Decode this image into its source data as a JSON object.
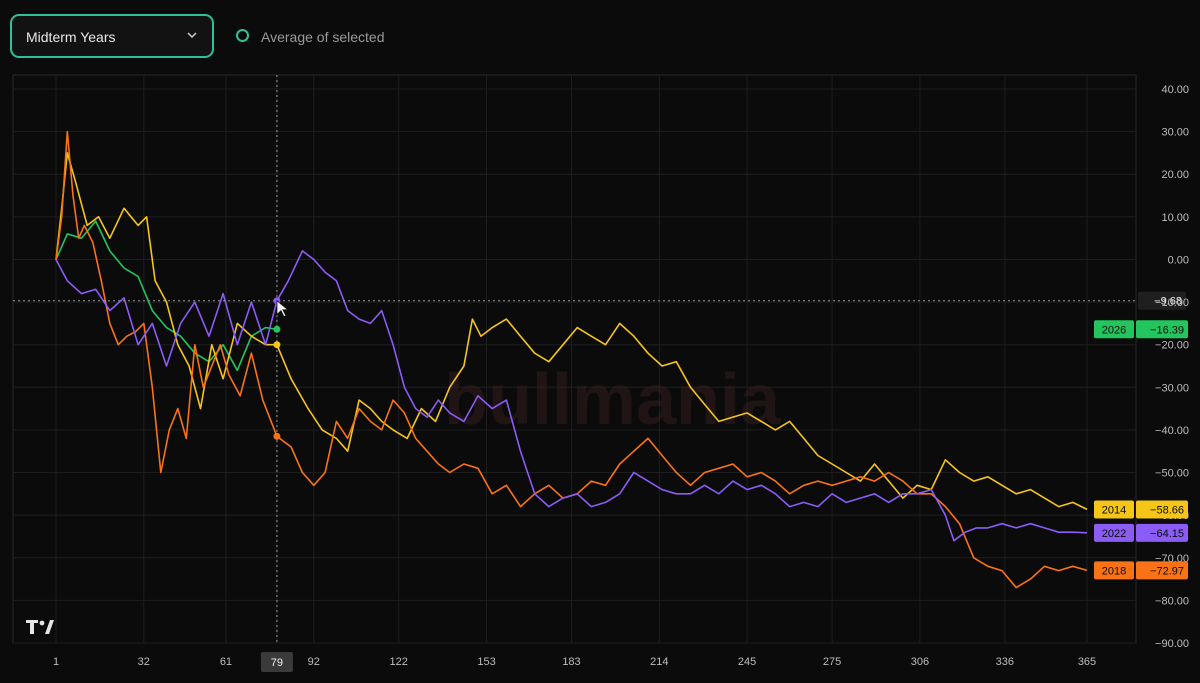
{
  "toolbar": {
    "dropdown_value": "Midterm Years",
    "average_label": "Average of selected"
  },
  "icons": {
    "dropdown": "chevron-down-icon",
    "logo": "tradingview-logo-icon",
    "cursor": "cursor-icon"
  },
  "watermark": "bullmania",
  "crosshair": {
    "x": 79,
    "y": -9.68,
    "x_label": "79",
    "y_label": "-9.68"
  },
  "chart_data": {
    "type": "line",
    "x_ticks": [
      1,
      32,
      61,
      79,
      92,
      122,
      153,
      183,
      214,
      245,
      275,
      306,
      336,
      365
    ],
    "y_ticks": [
      "40.00",
      "30.00",
      "20.00",
      "10.00",
      "0.00",
      "-10.00",
      "-20.00",
      "-30.00",
      "-40.00",
      "-50.00",
      "-60.00",
      "-70.00",
      "-80.00",
      "-90.00"
    ],
    "xlim": [
      1,
      365
    ],
    "ylim": [
      -90,
      40
    ],
    "grid": true,
    "series": [
      {
        "name": "2026",
        "color": "#22c55e",
        "last_label": "-16.39",
        "x": [
          1,
          5,
          10,
          15,
          20,
          25,
          30,
          35,
          40,
          45,
          50,
          55,
          60,
          65,
          70,
          75,
          79
        ],
        "y": [
          0,
          6,
          5,
          9,
          2,
          -2,
          -4,
          -12,
          -16,
          -18,
          -22,
          -24,
          -20,
          -26,
          -18,
          -16,
          -16.39
        ]
      },
      {
        "name": "2014",
        "color": "#f5c518",
        "last_label": "-58.66",
        "x": [
          1,
          3,
          5,
          8,
          12,
          16,
          20,
          25,
          30,
          33,
          36,
          40,
          44,
          48,
          52,
          56,
          60,
          65,
          70,
          75,
          79,
          84,
          90,
          95,
          100,
          104,
          108,
          112,
          116,
          120,
          125,
          130,
          135,
          140,
          145,
          148,
          151,
          155,
          160,
          165,
          170,
          175,
          180,
          185,
          190,
          195,
          200,
          205,
          210,
          215,
          220,
          225,
          230,
          235,
          240,
          245,
          250,
          255,
          260,
          265,
          270,
          275,
          280,
          285,
          290,
          295,
          300,
          305,
          310,
          315,
          320,
          325,
          330,
          335,
          340,
          345,
          350,
          355,
          360,
          365
        ],
        "y": [
          0,
          12,
          25,
          18,
          8,
          10,
          5,
          12,
          8,
          10,
          -5,
          -10,
          -20,
          -25,
          -35,
          -20,
          -28,
          -15,
          -18,
          -20,
          -20,
          -28,
          -35,
          -40,
          -42,
          -45,
          -33,
          -35,
          -38,
          -40,
          -42,
          -35,
          -38,
          -30,
          -25,
          -14,
          -18,
          -16,
          -14,
          -18,
          -22,
          -24,
          -20,
          -16,
          -18,
          -20,
          -15,
          -18,
          -22,
          -25,
          -24,
          -30,
          -34,
          -38,
          -37,
          -36,
          -38,
          -40,
          -38,
          -42,
          -46,
          -48,
          -50,
          -52,
          -48,
          -52,
          -56,
          -53,
          -54,
          -47,
          -50,
          -52,
          -51,
          -53,
          -55,
          -54,
          -56,
          -58,
          -57,
          -58.66
        ]
      },
      {
        "name": "2018",
        "color": "#f97316",
        "last_label": "-72.97",
        "x": [
          1,
          3,
          5,
          7,
          9,
          11,
          14,
          17,
          20,
          23,
          26,
          29,
          32,
          35,
          38,
          41,
          44,
          47,
          50,
          53,
          56,
          59,
          62,
          66,
          70,
          74,
          79,
          84,
          88,
          92,
          96,
          100,
          104,
          108,
          112,
          116,
          120,
          124,
          128,
          132,
          136,
          140,
          145,
          150,
          155,
          160,
          165,
          170,
          175,
          180,
          185,
          190,
          195,
          200,
          205,
          210,
          215,
          220,
          225,
          230,
          235,
          240,
          245,
          250,
          255,
          260,
          265,
          270,
          275,
          280,
          285,
          290,
          295,
          300,
          305,
          310,
          315,
          320,
          325,
          330,
          335,
          340,
          345,
          350,
          355,
          360,
          365
        ],
        "y": [
          0,
          10,
          30,
          15,
          5,
          8,
          4,
          -5,
          -15,
          -20,
          -18,
          -17,
          -15,
          -30,
          -50,
          -40,
          -35,
          -42,
          -20,
          -30,
          -25,
          -20,
          -27,
          -32,
          -22,
          -33,
          -41.5,
          -44,
          -50,
          -53,
          -50,
          -38,
          -42,
          -35,
          -38,
          -40,
          -33,
          -36,
          -42,
          -45,
          -48,
          -50,
          -48,
          -49,
          -55,
          -53,
          -58,
          -55,
          -53,
          -56,
          -55,
          -52,
          -53,
          -48,
          -45,
          -42,
          -46,
          -50,
          -53,
          -50,
          -49,
          -48,
          -51,
          -50,
          -52,
          -55,
          -53,
          -52,
          -53,
          -52,
          -51,
          -52,
          -50,
          -52,
          -55,
          -55,
          -58,
          -62,
          -70,
          -72,
          -73,
          -77,
          -75,
          -72,
          -73,
          -72,
          -72.97
        ]
      },
      {
        "name": "2022",
        "color": "#8b5cf6",
        "last_label": "-64.15",
        "x": [
          1,
          5,
          10,
          15,
          20,
          25,
          30,
          35,
          40,
          45,
          50,
          55,
          60,
          65,
          70,
          75,
          79,
          83,
          88,
          92,
          96,
          100,
          104,
          108,
          112,
          116,
          120,
          124,
          128,
          132,
          136,
          140,
          145,
          150,
          155,
          160,
          165,
          170,
          175,
          180,
          185,
          190,
          195,
          200,
          205,
          210,
          215,
          220,
          225,
          230,
          235,
          240,
          245,
          250,
          255,
          260,
          265,
          270,
          275,
          280,
          285,
          290,
          295,
          300,
          305,
          310,
          315,
          318,
          322,
          326,
          330,
          335,
          340,
          345,
          350,
          355,
          360,
          365
        ],
        "y": [
          0,
          -5,
          -8,
          -7,
          -12,
          -9,
          -20,
          -15,
          -25,
          -15,
          -10,
          -18,
          -8,
          -20,
          -10,
          -20,
          -9.68,
          -5,
          2,
          0,
          -3,
          -5,
          -12,
          -14,
          -15,
          -12,
          -20,
          -30,
          -35,
          -37,
          -33,
          -36,
          -38,
          -32,
          -35,
          -33,
          -45,
          -55,
          -58,
          -56,
          -55,
          -58,
          -57,
          -55,
          -50,
          -52,
          -54,
          -55,
          -55,
          -53,
          -55,
          -52,
          -54,
          -53,
          -55,
          -58,
          -57,
          -58,
          -55,
          -57,
          -56,
          -55,
          -57,
          -55,
          -55,
          -54,
          -60,
          -66,
          -64,
          -63,
          -63,
          -62,
          -63,
          -62,
          -63,
          -64,
          -64,
          -64.15
        ]
      }
    ]
  }
}
